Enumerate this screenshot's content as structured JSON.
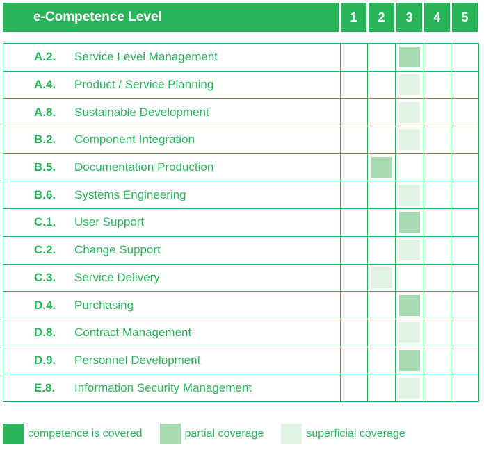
{
  "header": {
    "title": "e-Competence Level",
    "levels": [
      "1",
      "2",
      "3",
      "4",
      "5"
    ]
  },
  "colors": {
    "accent": "#2bb35a",
    "covered": "#2bb35a",
    "partial": "#a9dbb2",
    "superficial": "#e2f3e5"
  },
  "rows": [
    {
      "code": "A.2.",
      "name": "Service Level Management",
      "level": 3,
      "coverage": "partial"
    },
    {
      "code": "A.4.",
      "name": "Product / Service Planning",
      "level": 3,
      "coverage": "superficial"
    },
    {
      "code": "A.8.",
      "name": "Sustainable Development",
      "level": 3,
      "coverage": "superficial"
    },
    {
      "code": "B.2.",
      "name": "Component Integration",
      "level": 3,
      "coverage": "superficial"
    },
    {
      "code": "B.5.",
      "name": "Documentation Production",
      "level": 2,
      "coverage": "partial"
    },
    {
      "code": "B.6.",
      "name": "Systems Engineering",
      "level": 3,
      "coverage": "superficial"
    },
    {
      "code": "C.1.",
      "name": "User Support",
      "level": 3,
      "coverage": "partial"
    },
    {
      "code": "C.2.",
      "name": "Change Support",
      "level": 3,
      "coverage": "superficial"
    },
    {
      "code": "C.3.",
      "name": "Service Delivery",
      "level": 2,
      "coverage": "superficial"
    },
    {
      "code": "D.4.",
      "name": "Purchasing",
      "level": 3,
      "coverage": "partial"
    },
    {
      "code": "D.8.",
      "name": "Contract Management",
      "level": 3,
      "coverage": "superficial"
    },
    {
      "code": "D.9.",
      "name": "Personnel Development",
      "level": 3,
      "coverage": "partial"
    },
    {
      "code": "E.8.",
      "name": "Information Security Management",
      "level": 3,
      "coverage": "superficial"
    }
  ],
  "legend": {
    "covered": "competence is covered",
    "partial": "partial coverage",
    "superficial": "superficial coverage"
  }
}
